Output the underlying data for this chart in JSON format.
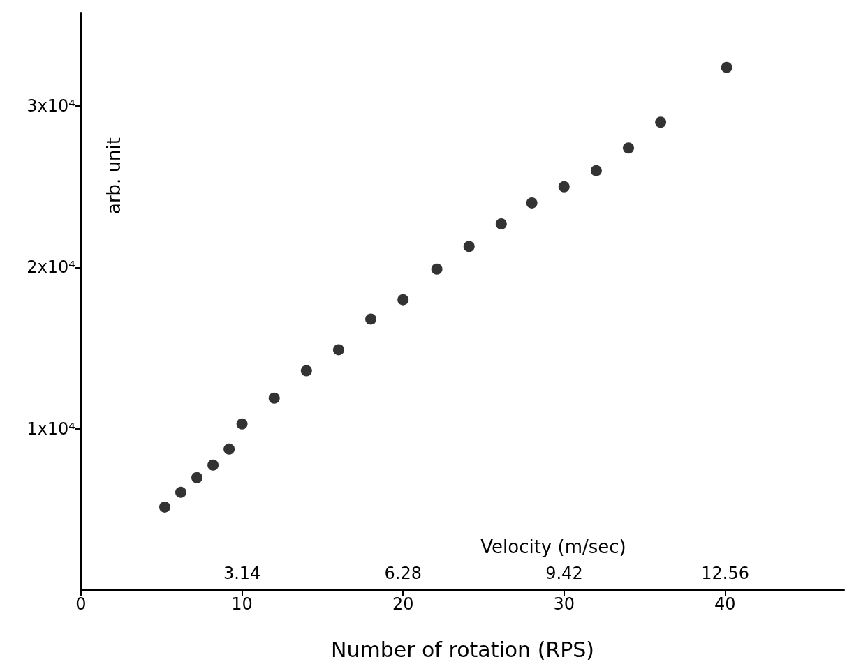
{
  "chart_data": {
    "type": "scatter",
    "xlabel": "Number of rotation (RPS)",
    "ylabel": "arb. unit",
    "x2label": "Velocity (m/sec)",
    "x": [
      5.2,
      6.2,
      7.2,
      8.2,
      9.2,
      10,
      12,
      14,
      16,
      18,
      20,
      22.1,
      24.1,
      26.1,
      28,
      30,
      32,
      34,
      36,
      40.1
    ],
    "series": [
      {
        "color": "#000000",
        "values": [
          5150,
          6060,
          6970,
          7750,
          8740,
          10300,
          11900,
          13600,
          14900,
          16800,
          18000,
          19900,
          21300,
          22700,
          24000,
          25000,
          26000,
          27400,
          29000,
          32400
        ]
      }
    ],
    "xlim": [
      0,
      47.4
    ],
    "xticks": [
      0,
      10,
      20,
      30,
      40
    ],
    "x2lim": [
      0,
      14.88
    ],
    "x2ticks": [
      3.14,
      6.28,
      9.42,
      12.56
    ],
    "ylim": [
      0,
      35800
    ],
    "yticks": [
      {
        "value": 10000,
        "label": "1x10⁴"
      },
      {
        "value": 20000,
        "label": "2x10⁴"
      },
      {
        "value": 30000,
        "label": "3x10⁴"
      }
    ],
    "marker": "circle"
  }
}
